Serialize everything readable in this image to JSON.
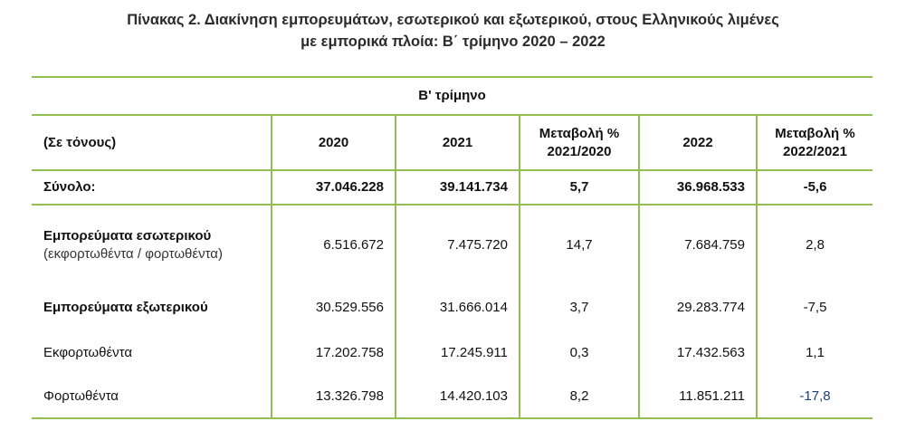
{
  "title": {
    "line1": "Πίνακας 2. Διακίνηση εμπορευμάτων, εσωτερικού και εξωτερικού, στους Ελληνικούς λιμένες",
    "line2": "με εμπορικά πλοία: Β΄ τρίμηνο 2020 – 2022"
  },
  "table": {
    "period_header": "B' τρίμηνο",
    "columns": {
      "unit": "(Σε τόνους)",
      "y2020": "2020",
      "y2021": "2021",
      "chg_2021_l1": "Μεταβολή %",
      "chg_2021_l2": "2021/2020",
      "y2022": "2022",
      "chg_2022_l1": "Μεταβολή %",
      "chg_2022_l2": "2022/2021"
    },
    "rows": [
      {
        "label": "Σύνολο:",
        "label2": "",
        "v2020": "37.046.228",
        "v2021": "39.141.734",
        "c2021": "5,7",
        "v2022": "36.968.533",
        "c2022": "-5,6"
      },
      {
        "label": "Εμπορεύματα εσωτερικού",
        "label2": "(εκφορτωθέντα / φορτωθέντα)",
        "v2020": "6.516.672",
        "v2021": "7.475.720",
        "c2021": "14,7",
        "v2022": "7.684.759",
        "c2022": "2,8"
      },
      {
        "label": "Εμπορεύματα εξωτερικού",
        "label2": "",
        "v2020": "30.529.556",
        "v2021": "31.666.014",
        "c2021": "3,7",
        "v2022": "29.283.774",
        "c2022": "-7,5"
      },
      {
        "label": "Εκφορτωθέντα",
        "label2": "",
        "v2020": "17.202.758",
        "v2021": "17.245.911",
        "c2021": "0,3",
        "v2022": "17.432.563",
        "c2022": "1,1"
      },
      {
        "label": "Φορτωθέντα",
        "label2": "",
        "v2020": "13.326.798",
        "v2021": "14.420.103",
        "c2021": "8,2",
        "v2022": "11.851.211",
        "c2022": "-17,8"
      }
    ]
  },
  "colors": {
    "rule_green": "#92c050",
    "negative_highlight": "#1f3f7a"
  }
}
